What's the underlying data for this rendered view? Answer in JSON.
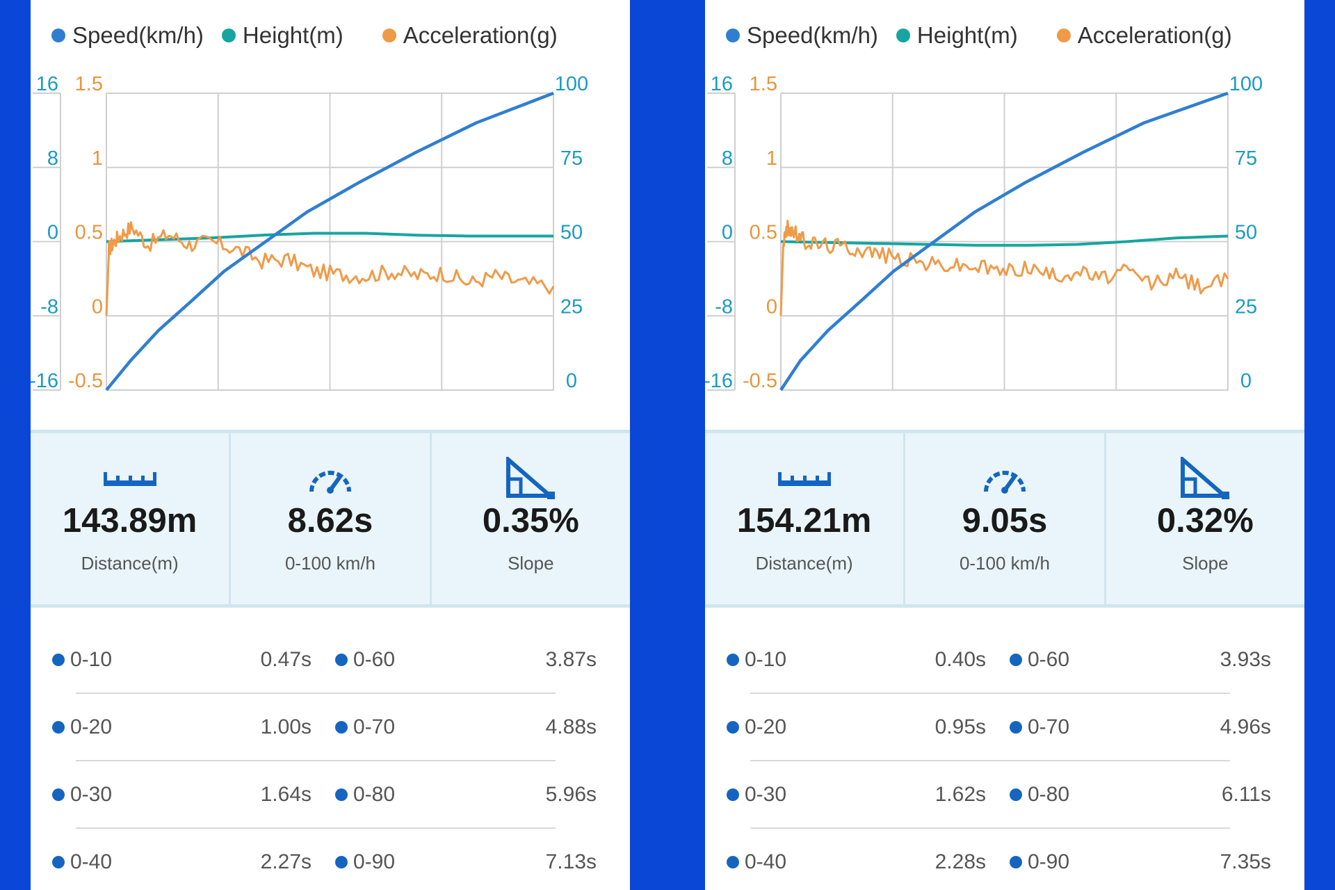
{
  "colors": {
    "background": "#0a47d6",
    "speed": "#2f7fd0",
    "height": "#16a5a0",
    "acceleration": "#ef9a48",
    "left_axis": "#1b9bc2",
    "right_axis": "#1b9bc2",
    "accel_axis": "#e8953c",
    "bullet": "#1565c0",
    "stats_bg": "#e9f5fa"
  },
  "icons": [
    "ruler-icon",
    "speedometer-icon",
    "slope-triangle-icon"
  ],
  "panels": [
    {
      "legend": [
        "Speed(km/h)",
        "Height(m)",
        "Acceleration(g)"
      ],
      "stats": [
        {
          "value": "143.89m",
          "label": "Distance(m)"
        },
        {
          "value": "8.62s",
          "label": "0-100 km/h"
        },
        {
          "value": "0.35%",
          "label": "Slope"
        }
      ],
      "splits": [
        {
          "range": "0-10",
          "time": "0.47s"
        },
        {
          "range": "0-20",
          "time": "1.00s"
        },
        {
          "range": "0-30",
          "time": "1.64s"
        },
        {
          "range": "0-40",
          "time": "2.27s"
        },
        {
          "range": "0-60",
          "time": "3.87s"
        },
        {
          "range": "0-70",
          "time": "4.88s"
        },
        {
          "range": "0-80",
          "time": "5.96s"
        },
        {
          "range": "0-90",
          "time": "7.13s"
        }
      ]
    },
    {
      "legend": [
        "Speed(km/h)",
        "Height(m)",
        "Acceleration(g)"
      ],
      "stats": [
        {
          "value": "154.21m",
          "label": "Distance(m)"
        },
        {
          "value": "9.05s",
          "label": "0-100 km/h"
        },
        {
          "value": "0.32%",
          "label": "Slope"
        }
      ],
      "splits": [
        {
          "range": "0-10",
          "time": "0.40s"
        },
        {
          "range": "0-20",
          "time": "0.95s"
        },
        {
          "range": "0-30",
          "time": "1.62s"
        },
        {
          "range": "0-40",
          "time": "2.28s"
        },
        {
          "range": "0-60",
          "time": "3.93s"
        },
        {
          "range": "0-70",
          "time": "4.96s"
        },
        {
          "range": "0-80",
          "time": "6.11s"
        },
        {
          "range": "0-90",
          "time": "7.35s"
        }
      ]
    }
  ],
  "chart_data": [
    {
      "type": "line",
      "title": "",
      "legend_position": "top",
      "grid": true,
      "axes": {
        "height": {
          "side": "left-outer",
          "ticks": [
            "16",
            "8",
            "0",
            "-8",
            "-16"
          ],
          "range": [
            -16,
            16
          ]
        },
        "acceleration": {
          "side": "left-inner",
          "ticks": [
            "1.5",
            "1",
            "0.5",
            "0",
            "-0.5"
          ],
          "range": [
            -0.5,
            1.5
          ]
        },
        "speed": {
          "side": "right",
          "ticks": [
            "100",
            "75",
            "50",
            "25",
            "0"
          ],
          "range": [
            0,
            100
          ]
        }
      },
      "series": [
        {
          "name": "Speed(km/h)",
          "axis": "speed",
          "x": [
            0,
            0.47,
            1.0,
            1.64,
            2.27,
            3.87,
            4.88,
            5.96,
            7.13,
            8.62
          ],
          "y": [
            0,
            10,
            20,
            30,
            40,
            60,
            70,
            80,
            90,
            100
          ]
        },
        {
          "name": "Height(m)",
          "axis": "height",
          "x": [
            0,
            1,
            2,
            3,
            4,
            5,
            6,
            7,
            8,
            8.62
          ],
          "y": [
            0,
            0.2,
            0.4,
            0.7,
            0.9,
            0.9,
            0.7,
            0.6,
            0.6,
            0.6
          ]
        },
        {
          "name": "Acceleration(g)",
          "axis": "acceleration",
          "x": [
            0,
            0.05,
            0.15,
            0.3,
            0.5,
            0.8,
            1.2,
            1.6,
            2.0,
            2.5,
            3.0,
            3.5,
            4.0,
            4.5,
            5.0,
            5.5,
            6.0,
            6.5,
            7.0,
            7.5,
            8.0,
            8.62
          ],
          "y": [
            0,
            0.45,
            0.5,
            0.55,
            0.6,
            0.48,
            0.55,
            0.48,
            0.5,
            0.45,
            0.37,
            0.38,
            0.3,
            0.28,
            0.27,
            0.3,
            0.27,
            0.29,
            0.22,
            0.27,
            0.22,
            0.2
          ]
        }
      ]
    },
    {
      "type": "line",
      "title": "",
      "legend_position": "top",
      "grid": true,
      "axes": {
        "height": {
          "side": "left-outer",
          "ticks": [
            "16",
            "8",
            "0",
            "-8",
            "-16"
          ],
          "range": [
            -16,
            16
          ]
        },
        "acceleration": {
          "side": "left-inner",
          "ticks": [
            "1.5",
            "1",
            "0.5",
            "0",
            "-0.5"
          ],
          "range": [
            -0.5,
            1.5
          ]
        },
        "speed": {
          "side": "right",
          "ticks": [
            "100",
            "75",
            "50",
            "25",
            "0"
          ],
          "range": [
            0,
            100
          ]
        }
      },
      "series": [
        {
          "name": "Speed(km/h)",
          "axis": "speed",
          "x": [
            0,
            0.4,
            0.95,
            1.62,
            2.28,
            3.93,
            4.96,
            6.11,
            7.35,
            9.05
          ],
          "y": [
            0,
            10,
            20,
            30,
            40,
            60,
            70,
            80,
            90,
            100
          ]
        },
        {
          "name": "Height(m)",
          "axis": "height",
          "x": [
            0,
            1,
            2,
            3,
            4,
            5,
            6,
            7,
            8,
            9.05
          ],
          "y": [
            0,
            -0.1,
            -0.2,
            -0.3,
            -0.4,
            -0.4,
            -0.3,
            0,
            0.4,
            0.6
          ]
        },
        {
          "name": "Acceleration(g)",
          "axis": "acceleration",
          "x": [
            0,
            0.05,
            0.15,
            0.3,
            0.5,
            0.8,
            1.2,
            1.6,
            2.0,
            2.5,
            3.0,
            3.5,
            4.0,
            4.5,
            5.0,
            5.5,
            6.0,
            6.5,
            7.0,
            7.5,
            8.0,
            8.5,
            9.05
          ],
          "y": [
            0,
            0.5,
            0.6,
            0.55,
            0.5,
            0.48,
            0.47,
            0.45,
            0.42,
            0.38,
            0.35,
            0.34,
            0.33,
            0.3,
            0.33,
            0.27,
            0.3,
            0.25,
            0.3,
            0.22,
            0.27,
            0.2,
            0.25
          ]
        }
      ]
    }
  ]
}
